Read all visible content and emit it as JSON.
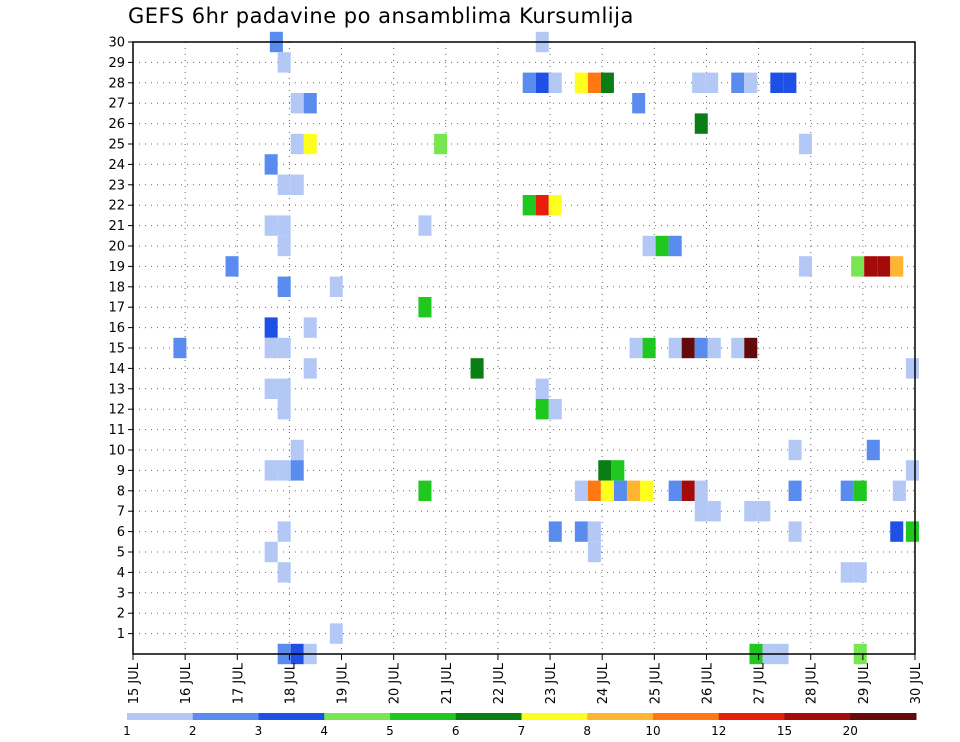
{
  "chart_data": {
    "type": "heatmap",
    "title": "GEFS 6hr padavine po ansamblima Kursumlija",
    "x_tick_labels": [
      "15 JUL",
      "16 JUL",
      "17 JUL",
      "18 JUL",
      "19 JUL",
      "20 JUL",
      "21 JUL",
      "22 JUL",
      "23 JUL",
      "24 JUL",
      "25 JUL",
      "26 JUL",
      "27 JUL",
      "28 JUL",
      "29 JUL",
      "30 JUL"
    ],
    "x_unit": "days from 15 JUL",
    "xlim": [
      0,
      15
    ],
    "y_tick_labels": [
      "1",
      "2",
      "3",
      "4",
      "5",
      "6",
      "7",
      "8",
      "9",
      "10",
      "11",
      "12",
      "13",
      "14",
      "15",
      "16",
      "17",
      "18",
      "19",
      "20",
      "21",
      "22",
      "23",
      "24",
      "25",
      "26",
      "27",
      "28",
      "29",
      "30"
    ],
    "ylim": [
      0,
      30
    ],
    "grid": true,
    "colorbar": {
      "tick_labels": [
        "1",
        "2",
        "3",
        "4",
        "5",
        "6",
        "7",
        "8",
        "10",
        "12",
        "15",
        "20"
      ],
      "colors": [
        "#b4c8f5",
        "#5a8cf0",
        "#1e50e6",
        "#78e650",
        "#1ec81e",
        "#0a7d14",
        "#ffff1e",
        "#ffb432",
        "#ff7814",
        "#e61e0a",
        "#a50a0a",
        "#640a0a"
      ]
    },
    "cells": [
      [
        2.75,
        30,
        1
      ],
      [
        7.85,
        30,
        0
      ],
      [
        2.9,
        29,
        0
      ],
      [
        7.6,
        28,
        1
      ],
      [
        7.85,
        28,
        2
      ],
      [
        8.1,
        28,
        0
      ],
      [
        8.6,
        28,
        6
      ],
      [
        8.85,
        28,
        8
      ],
      [
        9.1,
        28,
        5
      ],
      [
        10.85,
        28,
        0
      ],
      [
        11.1,
        28,
        0
      ],
      [
        11.6,
        28,
        1
      ],
      [
        11.85,
        28,
        0
      ],
      [
        12.35,
        28,
        2
      ],
      [
        12.6,
        28,
        2
      ],
      [
        3.15,
        27,
        0
      ],
      [
        3.4,
        27,
        1
      ],
      [
        9.7,
        27,
        1
      ],
      [
        10.9,
        26,
        5
      ],
      [
        3.15,
        25,
        0
      ],
      [
        3.4,
        25,
        6
      ],
      [
        5.9,
        25,
        3
      ],
      [
        12.9,
        25,
        0
      ],
      [
        2.65,
        24,
        1
      ],
      [
        2.9,
        23,
        0
      ],
      [
        3.15,
        23,
        0
      ],
      [
        7.6,
        22,
        4
      ],
      [
        7.85,
        22,
        9
      ],
      [
        8.1,
        22,
        6
      ],
      [
        2.65,
        21,
        0
      ],
      [
        2.9,
        21,
        0
      ],
      [
        5.6,
        21,
        0
      ],
      [
        2.9,
        20,
        0
      ],
      [
        9.9,
        20,
        0
      ],
      [
        10.15,
        20,
        4
      ],
      [
        10.4,
        20,
        1
      ],
      [
        1.9,
        19,
        1
      ],
      [
        12.9,
        19,
        0
      ],
      [
        13.9,
        19,
        3
      ],
      [
        14.15,
        19,
        10
      ],
      [
        14.4,
        19,
        10
      ],
      [
        14.65,
        19,
        7
      ],
      [
        2.9,
        18,
        1
      ],
      [
        3.9,
        18,
        0
      ],
      [
        5.6,
        17,
        4
      ],
      [
        2.65,
        16,
        2
      ],
      [
        3.4,
        16,
        0
      ],
      [
        0.9,
        15,
        1
      ],
      [
        2.65,
        15,
        0
      ],
      [
        2.9,
        15,
        0
      ],
      [
        9.65,
        15,
        0
      ],
      [
        9.9,
        15,
        4
      ],
      [
        10.4,
        15,
        0
      ],
      [
        10.65,
        15,
        11
      ],
      [
        10.9,
        15,
        1
      ],
      [
        11.15,
        15,
        0
      ],
      [
        11.6,
        15,
        0
      ],
      [
        11.85,
        15,
        11
      ],
      [
        3.4,
        14,
        0
      ],
      [
        6.6,
        14,
        5
      ],
      [
        14.95,
        14,
        0
      ],
      [
        2.65,
        13,
        0
      ],
      [
        2.9,
        13,
        0
      ],
      [
        7.85,
        13,
        0
      ],
      [
        2.9,
        12,
        0
      ],
      [
        7.85,
        12,
        4
      ],
      [
        8.1,
        12,
        0
      ],
      [
        3.15,
        10,
        0
      ],
      [
        12.7,
        10,
        0
      ],
      [
        14.2,
        10,
        1
      ],
      [
        2.65,
        9,
        0
      ],
      [
        2.9,
        9,
        0
      ],
      [
        3.15,
        9,
        1
      ],
      [
        9.05,
        9,
        5
      ],
      [
        9.3,
        9,
        4
      ],
      [
        14.95,
        9,
        0
      ],
      [
        5.6,
        8,
        4
      ],
      [
        8.6,
        8,
        0
      ],
      [
        8.85,
        8,
        8
      ],
      [
        9.1,
        8,
        6
      ],
      [
        9.35,
        8,
        1
      ],
      [
        9.6,
        8,
        7
      ],
      [
        9.85,
        8,
        6
      ],
      [
        10.4,
        8,
        1
      ],
      [
        10.65,
        8,
        10
      ],
      [
        10.9,
        8,
        0
      ],
      [
        12.7,
        8,
        1
      ],
      [
        13.7,
        8,
        1
      ],
      [
        13.95,
        8,
        4
      ],
      [
        14.7,
        8,
        0
      ],
      [
        10.9,
        7,
        0
      ],
      [
        11.15,
        7,
        0
      ],
      [
        11.85,
        7,
        0
      ],
      [
        12.1,
        7,
        0
      ],
      [
        2.9,
        6,
        0
      ],
      [
        8.1,
        6,
        1
      ],
      [
        8.6,
        6,
        1
      ],
      [
        8.85,
        6,
        0
      ],
      [
        12.7,
        6,
        0
      ],
      [
        14.65,
        6,
        2
      ],
      [
        14.95,
        6,
        4
      ],
      [
        2.65,
        5,
        0
      ],
      [
        8.85,
        5,
        0
      ],
      [
        2.9,
        4,
        0
      ],
      [
        13.7,
        4,
        0
      ],
      [
        13.95,
        4,
        0
      ],
      [
        3.9,
        1,
        0
      ],
      [
        2.9,
        0,
        1
      ],
      [
        3.15,
        0,
        2
      ],
      [
        3.4,
        0,
        0
      ],
      [
        11.95,
        0,
        4
      ],
      [
        12.2,
        0,
        0
      ],
      [
        12.45,
        0,
        0
      ],
      [
        13.95,
        0,
        3
      ]
    ]
  }
}
